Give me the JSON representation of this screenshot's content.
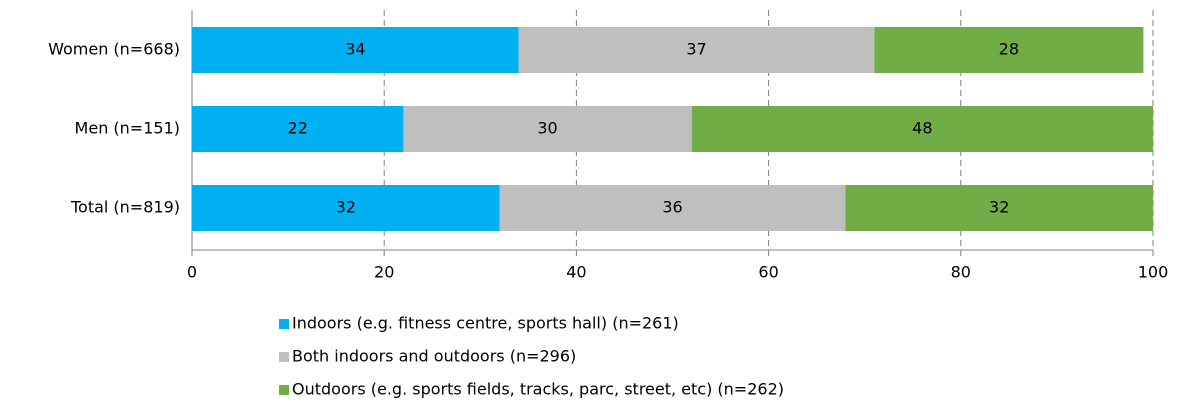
{
  "chart_data": {
    "type": "stacked_barh",
    "categories": [
      "Women (n=668)",
      "Men (n=151)",
      "Total (n=819)"
    ],
    "series": [
      {
        "name": "Indoors (e.g. fitness centre, sports hall) (n=261)",
        "color": "#00b0f0",
        "values": [
          34,
          22,
          32
        ]
      },
      {
        "name": "Both indoors and outdoors (n=296)",
        "color": "#bfbfbf",
        "values": [
          37,
          30,
          36
        ]
      },
      {
        "name": "Outdoors (e.g. sports fields, tracks, parc, street, etc) (n=262)",
        "color": "#70ad47",
        "values": [
          28,
          48,
          32
        ]
      }
    ],
    "xlim": [
      0,
      100
    ],
    "xticks": [
      0,
      20,
      40,
      60,
      80,
      100
    ],
    "grid": true,
    "legend": "bottom"
  }
}
